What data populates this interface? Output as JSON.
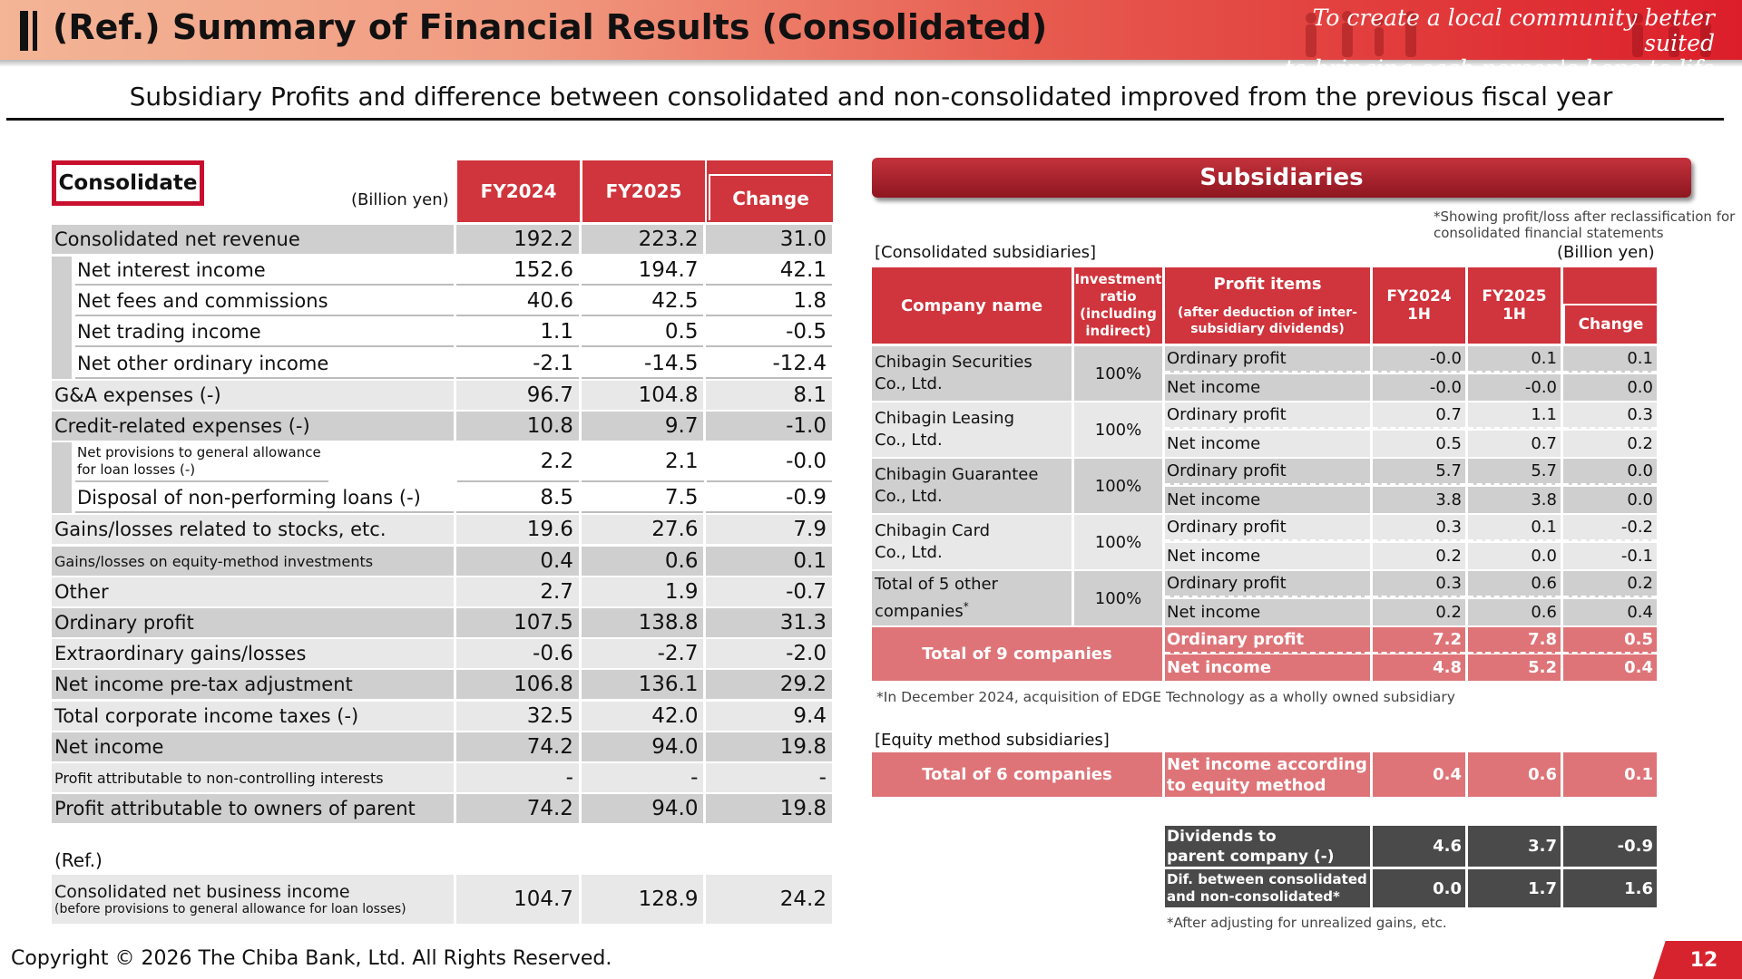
{
  "header": {
    "title": "(Ref.) Summary of Financial Results (Consolidated)",
    "tagline_line1": "To create a local community better suited",
    "tagline_line2": "to bringing each person's hope to life"
  },
  "subtitle": "Subsidiary Profits and difference between consolidated and non-consolidated improved from the previous fiscal year",
  "consolidated": {
    "box_label": "Consolidate",
    "unit": "(Billion yen)",
    "col_fy2024": "FY2024",
    "col_fy2025": "FY2025",
    "col_change": "Change",
    "rows": [
      {
        "label": "Consolidated net revenue",
        "fy2024": "192.2",
        "fy2025": "223.2",
        "change": "31.0"
      },
      {
        "label": "Net interest income",
        "fy2024": "152.6",
        "fy2025": "194.7",
        "change": "42.1"
      },
      {
        "label": "Net fees and commissions",
        "fy2024": "40.6",
        "fy2025": "42.5",
        "change": "1.8"
      },
      {
        "label": "Net trading income",
        "fy2024": "1.1",
        "fy2025": "0.5",
        "change": "-0.5"
      },
      {
        "label": "Net other ordinary income",
        "fy2024": "-2.1",
        "fy2025": "-14.5",
        "change": "-12.4"
      },
      {
        "label": "G&A expenses (-)",
        "fy2024": "96.7",
        "fy2025": "104.8",
        "change": "8.1"
      },
      {
        "label": "Credit-related expenses (-)",
        "fy2024": "10.8",
        "fy2025": "9.7",
        "change": "-1.0"
      },
      {
        "label": "Net provisions to general allowance for loan losses (-)",
        "fy2024": "2.2",
        "fy2025": "2.1",
        "change": "-0.0"
      },
      {
        "label": "Disposal of non-performing loans (-)",
        "fy2024": "8.5",
        "fy2025": "7.5",
        "change": "-0.9"
      },
      {
        "label": "Gains/losses related to stocks, etc.",
        "fy2024": "19.6",
        "fy2025": "27.6",
        "change": "7.9"
      },
      {
        "label": "Gains/losses on equity-method investments",
        "fy2024": "0.4",
        "fy2025": "0.6",
        "change": "0.1"
      },
      {
        "label": "Other",
        "fy2024": "2.7",
        "fy2025": "1.9",
        "change": "-0.7"
      },
      {
        "label": "Ordinary profit",
        "fy2024": "107.5",
        "fy2025": "138.8",
        "change": "31.3"
      },
      {
        "label": "Extraordinary gains/losses",
        "fy2024": "-0.6",
        "fy2025": "-2.7",
        "change": "-2.0"
      },
      {
        "label": "Net income pre-tax adjustment",
        "fy2024": "106.8",
        "fy2025": "136.1",
        "change": "29.2"
      },
      {
        "label": "Total corporate income taxes (-)",
        "fy2024": "32.5",
        "fy2025": "42.0",
        "change": "9.4"
      },
      {
        "label": "Net income",
        "fy2024": "74.2",
        "fy2025": "94.0",
        "change": "19.8"
      },
      {
        "label": "Profit attributable to non-controlling interests",
        "fy2024": "-",
        "fy2025": "-",
        "change": "-"
      },
      {
        "label": "Profit attributable to owners of parent",
        "fy2024": "74.2",
        "fy2025": "94.0",
        "change": "19.8"
      }
    ],
    "ref_label": "(Ref.)",
    "ref_row": {
      "label": "Consolidated net business income",
      "sublabel": "(before provisions to general allowance for loan losses)",
      "fy2024": "104.7",
      "fy2025": "128.9",
      "change": "24.2"
    }
  },
  "subsidiaries": {
    "banner": "Subsidiaries",
    "note_top_1": "*Showing profit/loss after reclassification for",
    "note_top_2": "consolidated financial statements",
    "section_consolidated": "[Consolidated subsidiaries]",
    "unit": "(Billion yen)",
    "headers": {
      "company": "Company name",
      "ratio_1": "Investment",
      "ratio_2": "ratio",
      "ratio_3": "(including",
      "ratio_4": "indirect)",
      "profit_1": "Profit items",
      "profit_2": "(after deduction of inter-",
      "profit_3": "subsidiary dividends)",
      "fy2024_1": "FY2024",
      "fy2024_2": "1H",
      "fy2025_1": "FY2025",
      "fy2025_2": "1H",
      "change": "Change"
    },
    "companies": [
      {
        "name1": "Chibagin Securities",
        "name2": "Co., Ltd.",
        "ratio": "100%",
        "op": {
          "label": "Ordinary profit",
          "fy2024": "-0.0",
          "fy2025": "0.1",
          "change": "0.1"
        },
        "ni": {
          "label": "Net income",
          "fy2024": "-0.0",
          "fy2025": "-0.0",
          "change": "0.0"
        }
      },
      {
        "name1": "Chibagin Leasing",
        "name2": "Co., Ltd.",
        "ratio": "100%",
        "op": {
          "label": "Ordinary profit",
          "fy2024": "0.7",
          "fy2025": "1.1",
          "change": "0.3"
        },
        "ni": {
          "label": "Net income",
          "fy2024": "0.5",
          "fy2025": "0.7",
          "change": "0.2"
        }
      },
      {
        "name1": "Chibagin Guarantee",
        "name2": "Co., Ltd.",
        "ratio": "100%",
        "op": {
          "label": "Ordinary profit",
          "fy2024": "5.7",
          "fy2025": "5.7",
          "change": "0.0"
        },
        "ni": {
          "label": "Net income",
          "fy2024": "3.8",
          "fy2025": "3.8",
          "change": "0.0"
        }
      },
      {
        "name1": "Chibagin Card",
        "name2": "Co., Ltd.",
        "ratio": "100%",
        "op": {
          "label": "Ordinary profit",
          "fy2024": "0.3",
          "fy2025": "0.1",
          "change": "-0.2"
        },
        "ni": {
          "label": "Net income",
          "fy2024": "0.2",
          "fy2025": "0.0",
          "change": "-0.1"
        }
      },
      {
        "name1": "Total of 5 other",
        "name2": "companies",
        "sup": "*",
        "ratio": "100%",
        "op": {
          "label": "Ordinary profit",
          "fy2024": "0.3",
          "fy2025": "0.6",
          "change": "0.2"
        },
        "ni": {
          "label": "Net income",
          "fy2024": "0.2",
          "fy2025": "0.6",
          "change": "0.4"
        }
      }
    ],
    "total": {
      "name": "Total of 9 companies",
      "op": {
        "label": "Ordinary profit",
        "fy2024": "7.2",
        "fy2025": "7.8",
        "change": "0.5"
      },
      "ni": {
        "label": "Net income",
        "fy2024": "4.8",
        "fy2025": "5.2",
        "change": "0.4"
      }
    },
    "note_edge": "*In December 2024, acquisition of EDGE Technology as a wholly owned subsidiary",
    "section_equity": "[Equity method subsidiaries]",
    "equity": {
      "name": "Total of 6 companies",
      "label1": "Net income according",
      "label2": "to equity method",
      "fy2024": "0.4",
      "fy2025": "0.6",
      "change": "0.1"
    },
    "dividends": {
      "label1": "Dividends to",
      "label2": "parent company (-)",
      "fy2024": "4.6",
      "fy2025": "3.7",
      "change": "-0.9"
    },
    "dif": {
      "label1": "Dif. between consolidated",
      "label2": "and non-consolidated*",
      "fy2024": "0.0",
      "fy2025": "1.7",
      "change": "1.6"
    },
    "note_bottom": "*After adjusting for unrealized gains, etc."
  },
  "footer": {
    "copyright": "Copyright © 2026 The Chiba Bank, Ltd. All Rights Reserved.",
    "page": "12"
  }
}
